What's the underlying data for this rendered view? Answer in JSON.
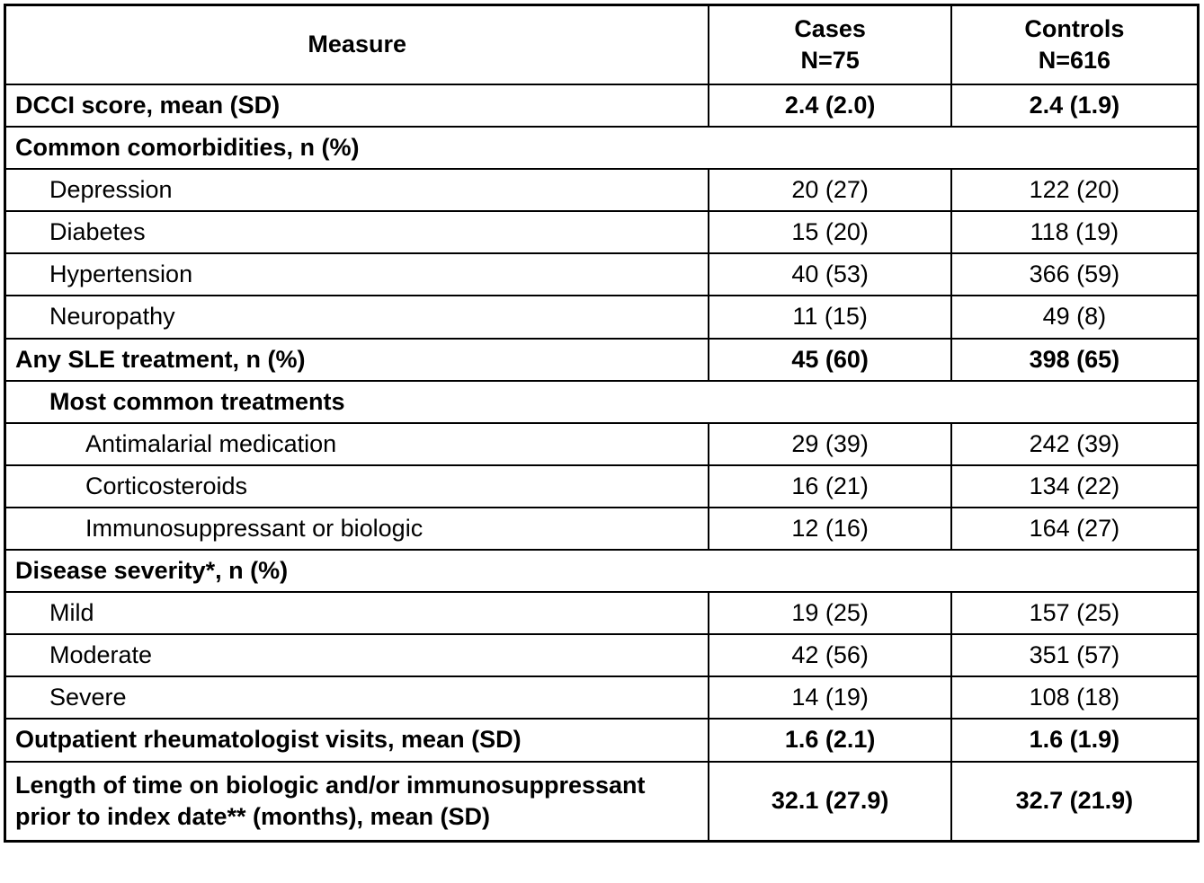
{
  "table": {
    "header": {
      "measure": "Measure",
      "cases_label": "Cases",
      "cases_n": "N=75",
      "controls_label": "Controls",
      "controls_n": "N=616"
    },
    "rows": [
      {
        "measure": "DCCI score, mean (SD)",
        "cases": "2.4 (2.0)",
        "controls": "2.4 (1.9)"
      },
      {
        "measure": "Common comorbidities, n (%)"
      },
      {
        "measure": "Depression",
        "cases": "20 (27)",
        "controls": "122 (20)"
      },
      {
        "measure": "Diabetes",
        "cases": "15 (20)",
        "controls": "118 (19)"
      },
      {
        "measure": "Hypertension",
        "cases": "40 (53)",
        "controls": "366 (59)"
      },
      {
        "measure": "Neuropathy",
        "cases": "11 (15)",
        "controls": "49 (8)"
      },
      {
        "measure": "Any SLE treatment, n (%)",
        "cases": "45 (60)",
        "controls": "398 (65)"
      },
      {
        "measure": "Most common treatments"
      },
      {
        "measure": "Antimalarial medication",
        "cases": "29 (39)",
        "controls": "242 (39)"
      },
      {
        "measure": "Corticosteroids",
        "cases": "16 (21)",
        "controls": "134 (22)"
      },
      {
        "measure": "Immunosuppressant or biologic",
        "cases": "12 (16)",
        "controls": "164 (27)"
      },
      {
        "measure": "Disease severity*, n (%)"
      },
      {
        "measure": "Mild",
        "cases": "19 (25)",
        "controls": "157 (25)"
      },
      {
        "measure": "Moderate",
        "cases": "42 (56)",
        "controls": "351 (57)"
      },
      {
        "measure": "Severe",
        "cases": "14 (19)",
        "controls": "108 (18)"
      },
      {
        "measure": "Outpatient rheumatologist visits, mean (SD)",
        "cases": "1.6 (2.1)",
        "controls": "1.6 (1.9)"
      },
      {
        "measure": "Length of time on biologic and/or immunosuppressant prior to index date** (months), mean (SD)",
        "cases": "32.1 (27.9)",
        "controls": "32.7 (21.9)"
      }
    ]
  },
  "chart_data": {
    "type": "table",
    "title": "",
    "columns": [
      "Measure",
      "Cases N=75",
      "Controls N=616"
    ],
    "rows": [
      [
        "DCCI score, mean (SD)",
        "2.4 (2.0)",
        "2.4 (1.9)"
      ],
      [
        "Common comorbidities, n (%)",
        "",
        ""
      ],
      [
        "Depression",
        "20 (27)",
        "122 (20)"
      ],
      [
        "Diabetes",
        "15 (20)",
        "118 (19)"
      ],
      [
        "Hypertension",
        "40 (53)",
        "366 (59)"
      ],
      [
        "Neuropathy",
        "11 (15)",
        "49 (8)"
      ],
      [
        "Any SLE treatment, n (%)",
        "45 (60)",
        "398 (65)"
      ],
      [
        "Most common treatments",
        "",
        ""
      ],
      [
        "Antimalarial medication",
        "29 (39)",
        "242 (39)"
      ],
      [
        "Corticosteroids",
        "16 (21)",
        "134 (22)"
      ],
      [
        "Immunosuppressant or biologic",
        "12 (16)",
        "164 (27)"
      ],
      [
        "Disease severity*, n (%)",
        "",
        ""
      ],
      [
        "Mild",
        "19 (25)",
        "157 (25)"
      ],
      [
        "Moderate",
        "42 (56)",
        "351 (57)"
      ],
      [
        "Severe",
        "14 (19)",
        "108 (18)"
      ],
      [
        "Outpatient rheumatologist visits, mean (SD)",
        "1.6 (2.1)",
        "1.6 (1.9)"
      ],
      [
        "Length of time on biologic and/or immunosuppressant prior to index date** (months), mean (SD)",
        "32.1 (27.9)",
        "32.7 (21.9)"
      ]
    ]
  }
}
